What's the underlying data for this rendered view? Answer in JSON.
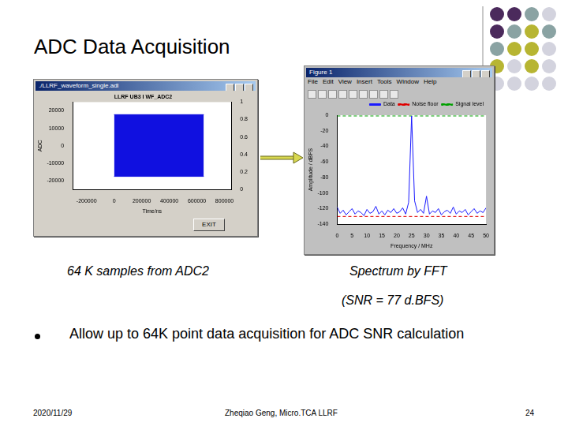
{
  "slide": {
    "title": "ADC Data Acquisition",
    "captions": {
      "left": "64 K samples from ADC2",
      "right": "Spectrum by FFT",
      "snr": "(SNR = 77 d.BFS)"
    },
    "bullet": "Allow up to 64K point data acquisition for ADC SNR calculation",
    "footer": {
      "date": "2020/11/29",
      "author": "Zheqiao Geng, Micro.TCA LLRF",
      "page": 24
    }
  },
  "windows": [
    {
      "title": "./LLRF_waveform_single.adl",
      "button": "EXIT"
    },
    {
      "title": "Figure 1",
      "menu": [
        "File",
        "Edit",
        "View",
        "Insert",
        "Tools",
        "Window",
        "Help"
      ]
    }
  ],
  "chart_data": [
    {
      "type": "area",
      "title": "LLRF UB3 I WF_ADC2",
      "x_label": "Time/ns",
      "y_label": "ADC",
      "band": {
        "x": [
          0,
          650000
        ],
        "upper": [
          17800,
          17800
        ],
        "lower": [
          -17500,
          -17500
        ],
        "color": "#1010e0"
      },
      "xlim": [
        -300000,
        850000
      ],
      "xticks": [
        -200000,
        0,
        200000,
        400000,
        600000,
        800000
      ],
      "ylim": [
        -25000,
        25000
      ],
      "yticks": [
        -20000,
        -10000,
        0,
        10000,
        20000
      ],
      "y2lim": [
        0,
        1
      ],
      "y2ticks": [
        0,
        0.2,
        0.4,
        0.6,
        0.8,
        1
      ],
      "grid": false
    },
    {
      "type": "line",
      "x_label": "Frequency / MHz",
      "y_label": "Amplitude / dBFS",
      "series": [
        {
          "name": "Data",
          "color": "#1a1aff",
          "line_style": "solid",
          "x": [
            0,
            1,
            2,
            3,
            4,
            5,
            6,
            7,
            8,
            9,
            10,
            11,
            12,
            13,
            14,
            15,
            16,
            17,
            18,
            19,
            20,
            21,
            22,
            23,
            24,
            25,
            26,
            27,
            28,
            29,
            30,
            31,
            32,
            33,
            34,
            35,
            36,
            37,
            38,
            39,
            40,
            41,
            42,
            43,
            44,
            45,
            46,
            47,
            48,
            49,
            50
          ],
          "values": [
            -118,
            -126,
            -122,
            -128,
            -124,
            -120,
            -127,
            -123,
            -125,
            -129,
            -121,
            -126,
            -124,
            -117,
            -127,
            -123,
            -128,
            -122,
            -125,
            -120,
            -126,
            -124,
            -119,
            -127,
            -112,
            -1,
            -110,
            -125,
            -121,
            -126,
            -104,
            -127,
            -123,
            -125,
            -120,
            -128,
            -124,
            -122,
            -126,
            -118,
            -127,
            -123,
            -125,
            -121,
            -128,
            -124,
            -120,
            -126,
            -123,
            -125,
            -119
          ]
        },
        {
          "name": "Noise floor",
          "color": "#e00000",
          "line_style": "dashed",
          "x": [
            0,
            50
          ],
          "values": [
            -130,
            -130
          ]
        },
        {
          "name": "Signal level",
          "color": "#00a000",
          "line_style": "dashed",
          "x": [
            0,
            50
          ],
          "values": [
            -1,
            -1
          ]
        }
      ],
      "xlim": [
        0,
        50
      ],
      "xticks": [
        0,
        5,
        10,
        15,
        20,
        25,
        30,
        35,
        40,
        45,
        50
      ],
      "ylim": [
        -140,
        0
      ],
      "yticks": [
        -140,
        -120,
        -100,
        -80,
        -60,
        -40,
        -20,
        0
      ],
      "legend": "upper right",
      "grid": false
    }
  ]
}
